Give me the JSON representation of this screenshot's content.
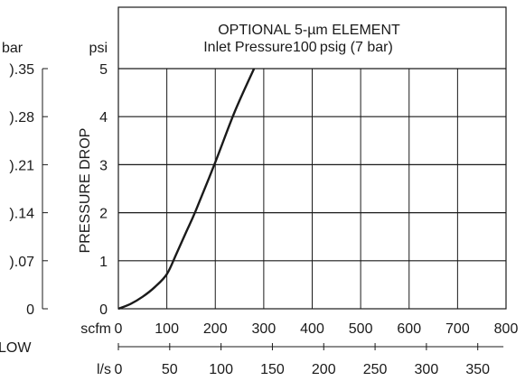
{
  "chart_data": {
    "type": "line",
    "title_lines": [
      "OPTIONAL 5-µm ELEMENT",
      "Inlet Pressure100 psig (7 bar)"
    ],
    "ylabel": "PRESSURE DROP",
    "xlabel_partial": "LOW",
    "xlim": [
      0,
      800
    ],
    "ylim": [
      0,
      5
    ],
    "grid": true,
    "x_axis_primary": {
      "unit": "scfm",
      "ticks": [
        "0",
        "100",
        "200",
        "300",
        "400",
        "500",
        "600",
        "700",
        "800"
      ]
    },
    "x_axis_secondary": {
      "unit": "l/s",
      "ticks": [
        "0",
        "50",
        "100",
        "150",
        "200",
        "250",
        "300",
        "350"
      ]
    },
    "y_axis_primary": {
      "unit": "psi",
      "ticks": [
        "0",
        "1",
        "2",
        "3",
        "4",
        "5"
      ]
    },
    "y_axis_secondary": {
      "unit": "bar",
      "ticks": [
        "0",
        ").07",
        ").14",
        ").21",
        ").28",
        ").35"
      ]
    },
    "series": [
      {
        "x": [
          0,
          25,
          50,
          75,
          100,
          120,
          140,
          160,
          200,
          240,
          280
        ],
        "y": [
          0,
          0.1,
          0.25,
          0.45,
          0.72,
          1.15,
          1.6,
          2.05,
          3.05,
          4.1,
          5.0
        ]
      }
    ],
    "colors": {
      "line": "#1a1a1a",
      "grid": "#1a1a1a"
    }
  }
}
